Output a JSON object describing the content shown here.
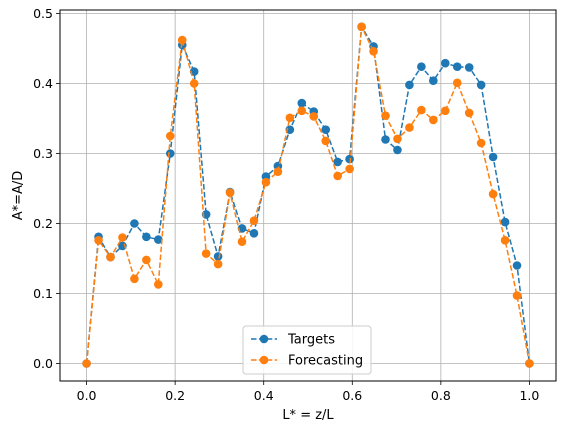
{
  "chart_data": {
    "type": "line",
    "xlabel": "L* = z/L",
    "ylabel": "A*=A/D",
    "xlim": [
      -0.06,
      1.06
    ],
    "ylim": [
      -0.025,
      0.505
    ],
    "xticks": [
      "0.0",
      "0.2",
      "0.4",
      "0.6",
      "0.8",
      "1.0"
    ],
    "yticks": [
      "0.0",
      "0.1",
      "0.2",
      "0.3",
      "0.4",
      "0.5"
    ],
    "grid": true,
    "legend_position": "lower center",
    "x": [
      0.0,
      0.027,
      0.054,
      0.081,
      0.108,
      0.135,
      0.162,
      0.189,
      0.216,
      0.243,
      0.27,
      0.297,
      0.324,
      0.351,
      0.378,
      0.405,
      0.432,
      0.459,
      0.486,
      0.513,
      0.54,
      0.567,
      0.594,
      0.621,
      0.648,
      0.675,
      0.702,
      0.729,
      0.756,
      0.783,
      0.81,
      0.837,
      0.864,
      0.891,
      0.918,
      0.945,
      0.972,
      1.0
    ],
    "series": [
      {
        "name": "Targets",
        "color": "#1f77b4",
        "values": [
          0.0,
          0.181,
          0.152,
          0.168,
          0.2,
          0.181,
          0.177,
          0.3,
          0.455,
          0.417,
          0.213,
          0.153,
          0.245,
          0.193,
          0.186,
          0.267,
          0.282,
          0.334,
          0.372,
          0.36,
          0.334,
          0.288,
          0.292,
          0.481,
          0.453,
          0.32,
          0.305,
          0.398,
          0.424,
          0.404,
          0.429,
          0.424,
          0.423,
          0.398,
          0.295,
          0.202,
          0.14,
          0.0
        ]
      },
      {
        "name": "Forecasting",
        "color": "#ff7f0e",
        "values": [
          0.0,
          0.176,
          0.152,
          0.18,
          0.121,
          0.148,
          0.113,
          0.325,
          0.462,
          0.4,
          0.157,
          0.142,
          0.244,
          0.174,
          0.204,
          0.259,
          0.274,
          0.351,
          0.361,
          0.353,
          0.318,
          0.268,
          0.278,
          0.481,
          0.446,
          0.354,
          0.321,
          0.337,
          0.362,
          0.348,
          0.361,
          0.401,
          0.358,
          0.315,
          0.242,
          0.176,
          0.097,
          0.0
        ]
      }
    ]
  }
}
